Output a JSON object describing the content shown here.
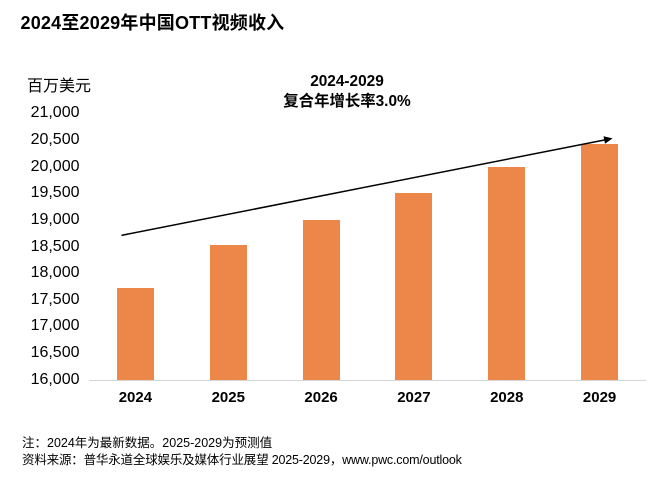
{
  "title": "2024至2029年中国OTT视频收入",
  "annotation": {
    "line1": "2024-2029",
    "line2": "复合年增长率3.0%"
  },
  "notes": [
    "注：2024年为最新数据。2025-2029为预测值",
    "资料来源：普华永道全球娱乐及媒体行业展望 2025-2029，www.pwc.com/outlook"
  ],
  "colors": {
    "bar": "#ED8749",
    "axis_line": "#D6D6D6",
    "arrow": "#000000",
    "text": "#000000"
  },
  "chart_data": {
    "type": "bar",
    "title": "2024至2029年中国OTT视频收入",
    "categories": [
      "2024",
      "2025",
      "2026",
      "2027",
      "2028",
      "2029"
    ],
    "values": [
      17720,
      18530,
      19000,
      19500,
      20000,
      20430
    ],
    "xlabel": "",
    "ylabel": "百万美元",
    "ylim": [
      16000,
      21000
    ],
    "yticks": [
      {
        "value": 16000,
        "label": "16,000"
      },
      {
        "value": 16500,
        "label": "16,500"
      },
      {
        "value": 17000,
        "label": "17,000"
      },
      {
        "value": 17500,
        "label": "17,500"
      },
      {
        "value": 18000,
        "label": "18,000"
      },
      {
        "value": 18500,
        "label": "18,500"
      },
      {
        "value": 19000,
        "label": "19,000"
      },
      {
        "value": 19500,
        "label": "19,500"
      },
      {
        "value": 20000,
        "label": "20,000"
      },
      {
        "value": 20500,
        "label": "20,500"
      },
      {
        "value": 21000,
        "label": "21,000"
      }
    ],
    "grid": false,
    "legend": false,
    "annotation": "2024-2029 复合年增长率3.0%",
    "trend_arrow": {
      "from": {
        "category_offset": -0.15,
        "value": 18710
      },
      "to": {
        "category_offset": 5.14,
        "value": 20530
      }
    }
  }
}
